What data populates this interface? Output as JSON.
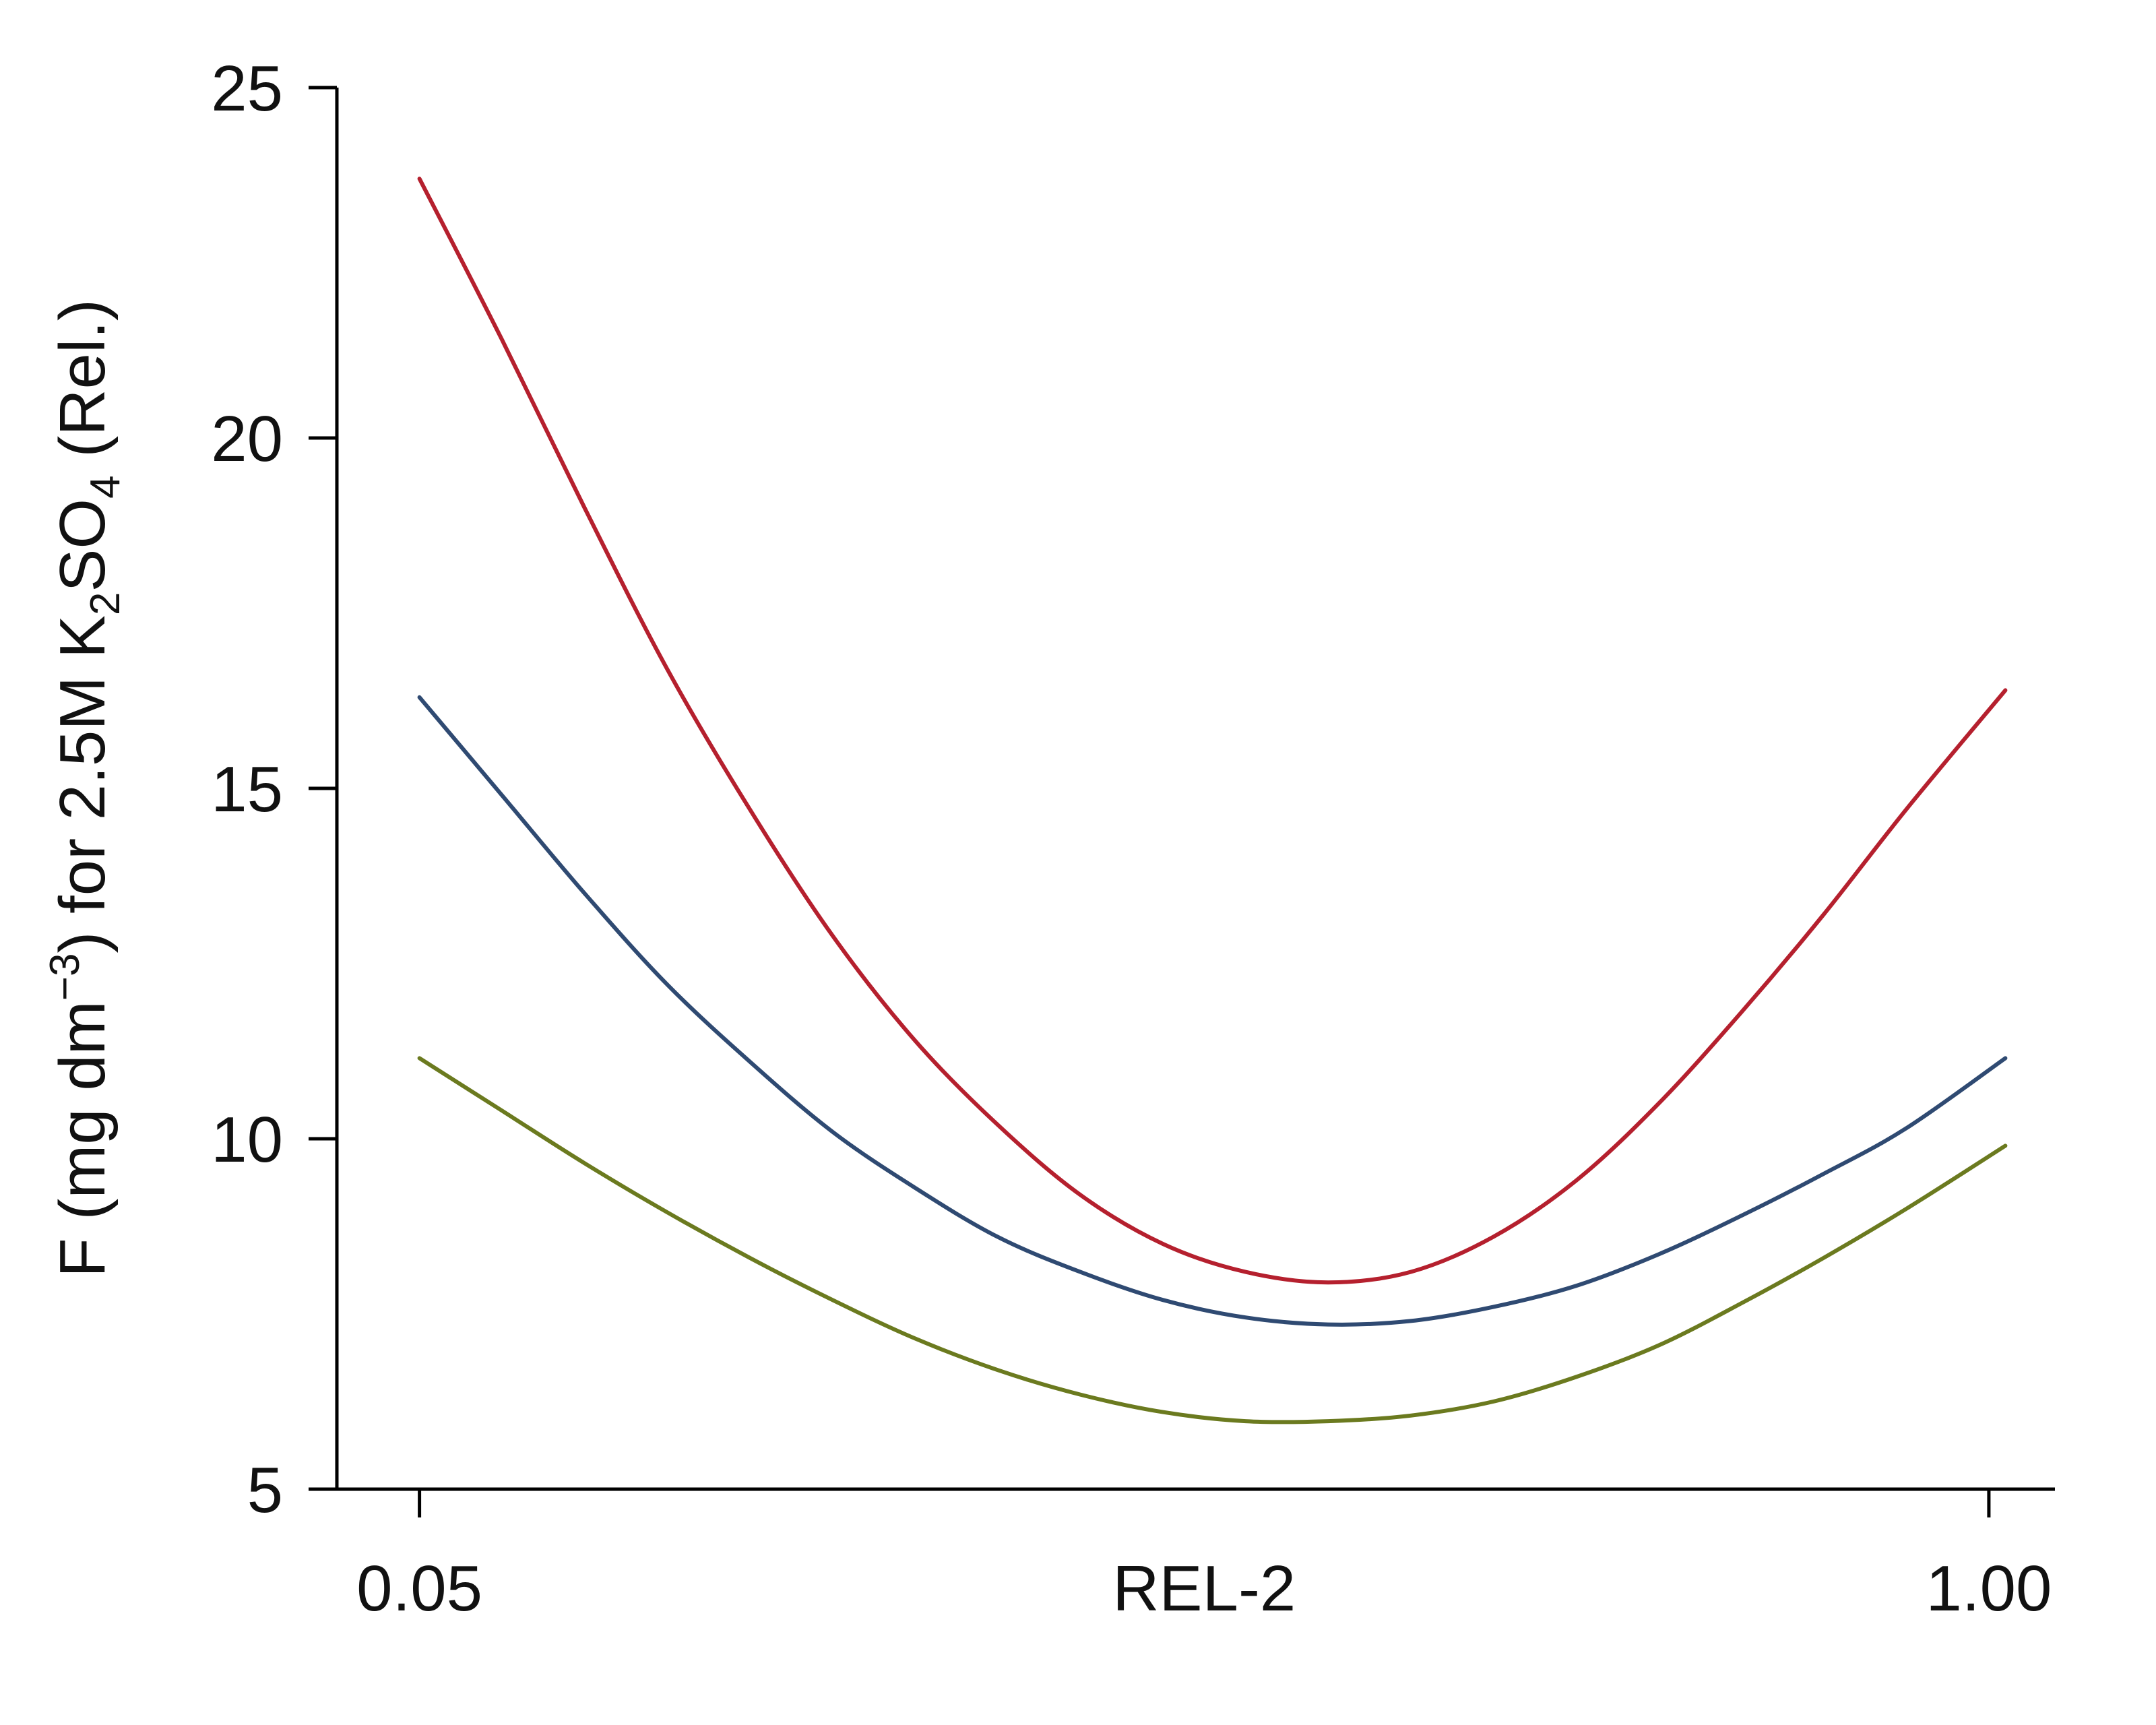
{
  "chart_data": {
    "type": "line",
    "xlabel": "REL-2",
    "ylabel": {
      "prefix": "F (mg dm",
      "sup": "−3",
      "middle": ") for 2.5M K",
      "sub1": "2",
      "middle2": "SO",
      "sub2": "4",
      "suffix": " (Rel.)"
    },
    "x_ticks": [
      {
        "value": 0.05,
        "label": "0.05"
      },
      {
        "value": 1.0,
        "label": "1.00"
      }
    ],
    "y_ticks": [
      {
        "value": 5,
        "label": "5"
      },
      {
        "value": 10,
        "label": "10"
      },
      {
        "value": 15,
        "label": "15"
      },
      {
        "value": 20,
        "label": "20"
      },
      {
        "value": 25,
        "label": "25"
      }
    ],
    "xlim": [
      0.0,
      1.04
    ],
    "ylim": [
      5,
      25
    ],
    "grid": false,
    "legend": "none",
    "series": [
      {
        "color": "#b5202e",
        "x": [
          0.05,
          0.1,
          0.15,
          0.2,
          0.25,
          0.3,
          0.35,
          0.4,
          0.45,
          0.5,
          0.55,
          0.6,
          0.65,
          0.7,
          0.75,
          0.8,
          0.85,
          0.9,
          0.95,
          1.01
        ],
        "y": [
          23.7,
          21.4,
          19.0,
          16.7,
          14.7,
          12.9,
          11.4,
          10.2,
          9.2,
          8.5,
          8.1,
          7.95,
          8.1,
          8.6,
          9.4,
          10.5,
          11.8,
          13.2,
          14.7,
          16.4
        ]
      },
      {
        "color": "#2f4a72",
        "x": [
          0.05,
          0.1,
          0.15,
          0.2,
          0.25,
          0.3,
          0.35,
          0.4,
          0.45,
          0.5,
          0.55,
          0.6,
          0.65,
          0.7,
          0.75,
          0.8,
          0.85,
          0.9,
          0.95,
          1.01
        ],
        "y": [
          16.3,
          14.9,
          13.5,
          12.2,
          11.1,
          10.1,
          9.3,
          8.6,
          8.1,
          7.7,
          7.45,
          7.35,
          7.4,
          7.6,
          7.9,
          8.35,
          8.9,
          9.5,
          10.15,
          11.15
        ]
      },
      {
        "color": "#6b7a1f",
        "x": [
          0.05,
          0.1,
          0.15,
          0.2,
          0.25,
          0.3,
          0.35,
          0.4,
          0.45,
          0.5,
          0.55,
          0.6,
          0.65,
          0.7,
          0.75,
          0.8,
          0.85,
          0.9,
          0.95,
          1.01
        ],
        "y": [
          11.15,
          10.4,
          9.65,
          8.95,
          8.3,
          7.7,
          7.15,
          6.7,
          6.35,
          6.1,
          5.97,
          5.97,
          6.05,
          6.25,
          6.6,
          7.05,
          7.65,
          8.3,
          9.0,
          9.9
        ]
      }
    ]
  }
}
